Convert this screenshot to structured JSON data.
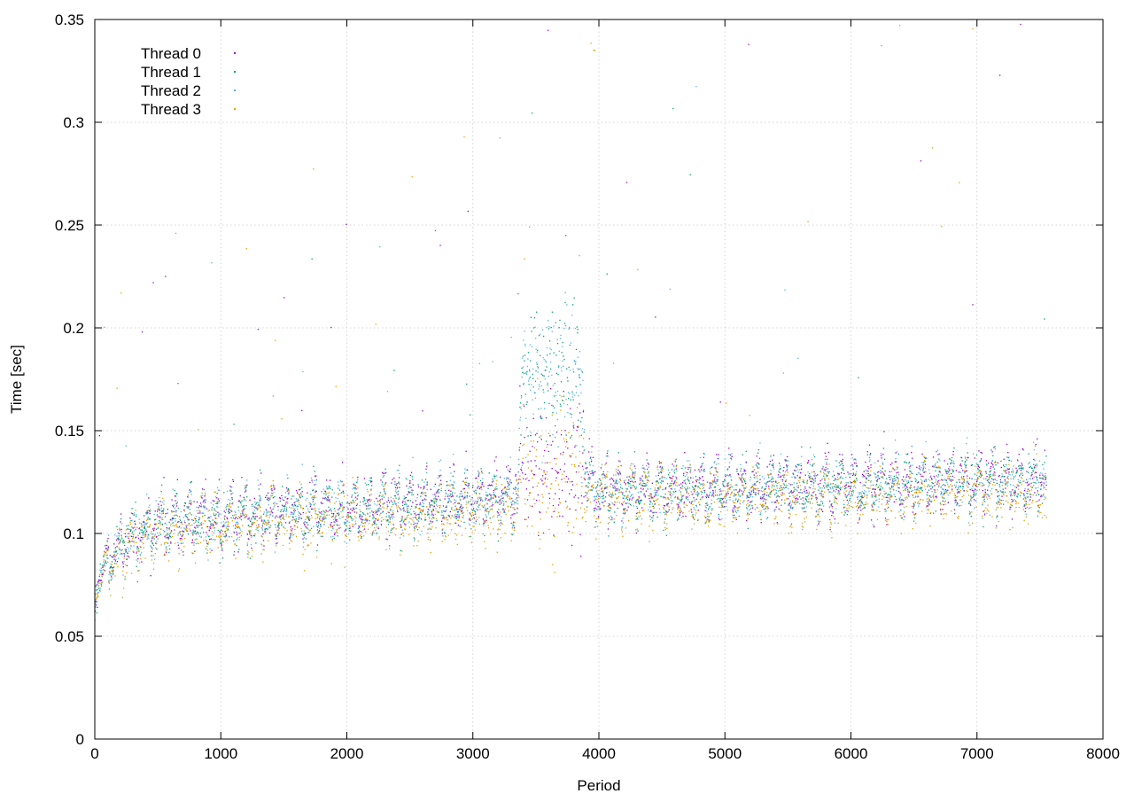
{
  "chart_data": {
    "type": "scatter",
    "title": "",
    "xlabel": "Period",
    "ylabel": "Time [sec]",
    "xlim": [
      0,
      8000
    ],
    "ylim": [
      0,
      0.35
    ],
    "x_ticks": [
      0,
      1000,
      2000,
      3000,
      4000,
      5000,
      6000,
      7000,
      8000
    ],
    "x_tick_labels": [
      "0",
      "1000",
      "2000",
      "3000",
      "4000",
      "5000",
      "6000",
      "7000",
      "8000"
    ],
    "y_ticks": [
      0,
      0.05,
      0.1,
      0.15,
      0.2,
      0.25,
      0.3,
      0.35
    ],
    "y_tick_labels": [
      "0",
      "0.05",
      "0.1",
      "0.15",
      "0.2",
      "0.25",
      "0.3",
      "0.35"
    ],
    "grid": true,
    "legend_position": "top-left",
    "point_count_per_series": 7560,
    "series": [
      {
        "name": "Thread 0",
        "color": "#9400d3",
        "trend": [
          [
            0,
            0.075
          ],
          [
            200,
            0.095
          ],
          [
            500,
            0.105
          ],
          [
            1000,
            0.108
          ],
          [
            1500,
            0.112
          ],
          [
            2000,
            0.113
          ],
          [
            2500,
            0.115
          ],
          [
            3000,
            0.117
          ],
          [
            3350,
            0.12
          ],
          [
            3400,
            0.13
          ],
          [
            3900,
            0.13
          ],
          [
            4000,
            0.12
          ],
          [
            5000,
            0.122
          ],
          [
            6000,
            0.124
          ],
          [
            7000,
            0.126
          ],
          [
            7550,
            0.127
          ]
        ]
      },
      {
        "name": "Thread 1",
        "color": "#009e73",
        "trend": [
          [
            0,
            0.075
          ],
          [
            200,
            0.095
          ],
          [
            500,
            0.104
          ],
          [
            1000,
            0.107
          ],
          [
            1500,
            0.11
          ],
          [
            2000,
            0.112
          ],
          [
            2500,
            0.114
          ],
          [
            3000,
            0.115
          ],
          [
            3350,
            0.118
          ],
          [
            3400,
            0.18
          ],
          [
            3850,
            0.18
          ],
          [
            3900,
            0.125
          ],
          [
            4000,
            0.12
          ],
          [
            5000,
            0.121
          ],
          [
            6000,
            0.123
          ],
          [
            7000,
            0.125
          ],
          [
            7550,
            0.126
          ]
        ]
      },
      {
        "name": "Thread 2",
        "color": "#56b4e9",
        "trend": [
          [
            0,
            0.075
          ],
          [
            200,
            0.095
          ],
          [
            500,
            0.104
          ],
          [
            1000,
            0.108
          ],
          [
            1500,
            0.11
          ],
          [
            2000,
            0.112
          ],
          [
            2500,
            0.114
          ],
          [
            3000,
            0.116
          ],
          [
            3350,
            0.119
          ],
          [
            3400,
            0.18
          ],
          [
            3850,
            0.18
          ],
          [
            3900,
            0.125
          ],
          [
            4000,
            0.12
          ],
          [
            5000,
            0.121
          ],
          [
            6000,
            0.123
          ],
          [
            7000,
            0.125
          ],
          [
            7550,
            0.126
          ]
        ]
      },
      {
        "name": "Thread 3",
        "color": "#e69f00",
        "trend": [
          [
            0,
            0.075
          ],
          [
            200,
            0.092
          ],
          [
            500,
            0.1
          ],
          [
            1000,
            0.104
          ],
          [
            1500,
            0.106
          ],
          [
            2000,
            0.108
          ],
          [
            2500,
            0.109
          ],
          [
            3000,
            0.11
          ],
          [
            3350,
            0.113
          ],
          [
            3400,
            0.13
          ],
          [
            3850,
            0.13
          ],
          [
            3900,
            0.12
          ],
          [
            4000,
            0.118
          ],
          [
            5000,
            0.118
          ],
          [
            6000,
            0.118
          ],
          [
            7000,
            0.12
          ],
          [
            7550,
            0.12
          ]
        ]
      }
    ]
  }
}
